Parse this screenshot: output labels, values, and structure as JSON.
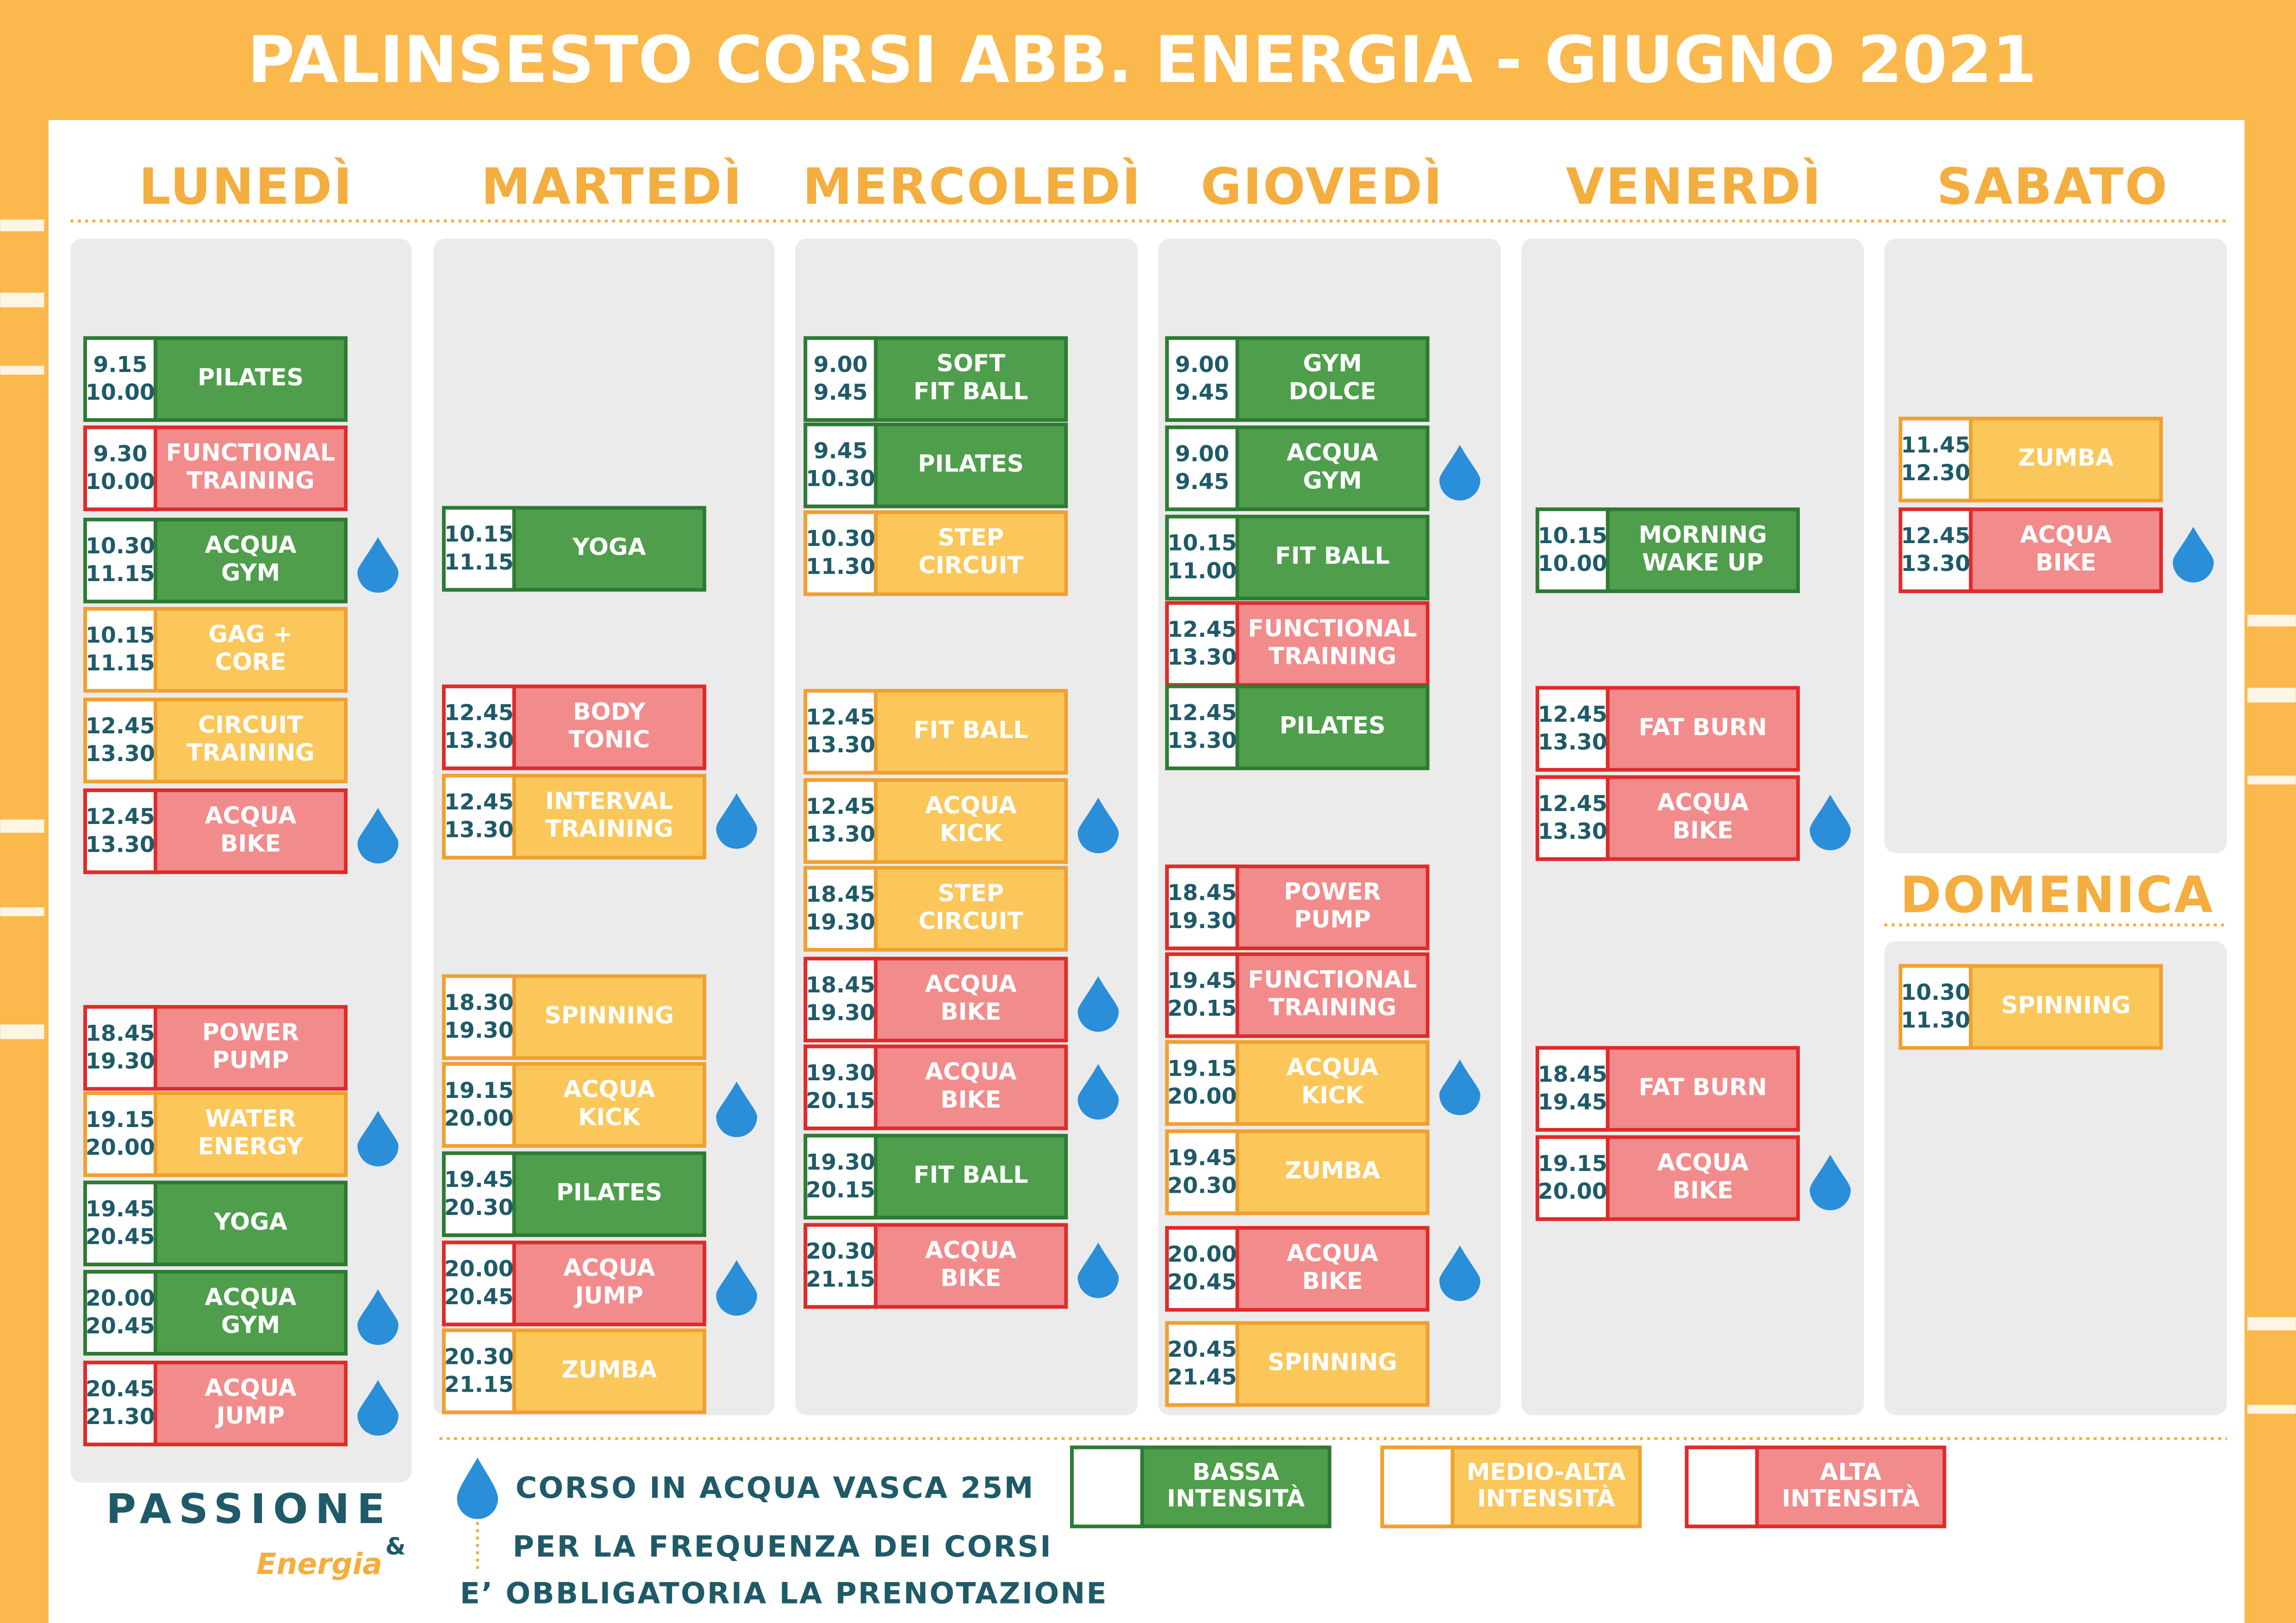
{
  "title": "PALINSESTO CORSI ABB. ENERGIA - GIUGNO 2021",
  "days": [
    {
      "name": "LUNEDÌ",
      "classes": [
        {
          "start": "9.15",
          "end": "10.00",
          "name": [
            "PILATES"
          ],
          "color": "#4e9e4b",
          "water": false
        },
        {
          "start": "9.30",
          "end": "10.00",
          "name": [
            "FUNCTIONAL",
            "TRAINING"
          ],
          "color": "#f28b8b",
          "water": false
        },
        {
          "start": "10.30",
          "end": "11.15",
          "name": [
            "ACQUA",
            "GYM"
          ],
          "color": "#4e9e4b",
          "water": true
        },
        {
          "start": "10.15",
          "end": "11.15",
          "name": [
            "GAG +",
            "CORE"
          ],
          "color": "#fbc75a",
          "water": false
        },
        {
          "start": "12.45",
          "end": "13.30",
          "name": [
            "CIRCUIT",
            "TRAINING"
          ],
          "color": "#fbc75a",
          "water": false
        },
        {
          "start": "12.45",
          "end": "13.30",
          "name": [
            "ACQUA",
            "BIKE"
          ],
          "color": "#f28b8b",
          "water": true
        },
        {
          "start": "18.45",
          "end": "19.30",
          "name": [
            "POWER",
            "PUMP"
          ],
          "color": "#f28b8b",
          "water": false
        },
        {
          "start": "19.15",
          "end": "20.00",
          "name": [
            "WATER",
            "ENERGY"
          ],
          "color": "#fbc75a",
          "water": true
        },
        {
          "start": "19.45",
          "end": "20.45",
          "name": [
            "YOGA"
          ],
          "color": "#4e9e4b",
          "water": false
        },
        {
          "start": "20.00",
          "end": "20.45",
          "name": [
            "ACQUA",
            "GYM"
          ],
          "color": "#4e9e4b",
          "water": true
        },
        {
          "start": "20.45",
          "end": "21.30",
          "name": [
            "ACQUA",
            "JUMP"
          ],
          "color": "#f28b8b",
          "water": true
        }
      ]
    },
    {
      "name": "MARTEDÌ",
      "classes": [
        {
          "start": "10.15",
          "end": "11.15",
          "name": [
            "YOGA"
          ],
          "color": "#4e9e4b",
          "water": false
        },
        {
          "start": "12.45",
          "end": "13.30",
          "name": [
            "BODY",
            "TONIC"
          ],
          "color": "#f28b8b",
          "water": false
        },
        {
          "start": "12.45",
          "end": "13.30",
          "name": [
            "INTERVAL",
            "TRAINING"
          ],
          "color": "#fbc75a",
          "water": true
        },
        {
          "start": "18.30",
          "end": "19.30",
          "name": [
            "SPINNING"
          ],
          "color": "#fbc75a",
          "water": false
        },
        {
          "start": "19.15",
          "end": "20.00",
          "name": [
            "ACQUA",
            "KICK"
          ],
          "color": "#fbc75a",
          "water": true
        },
        {
          "start": "19.45",
          "end": "20.30",
          "name": [
            "PILATES"
          ],
          "color": "#4e9e4b",
          "water": false
        },
        {
          "start": "20.00",
          "end": "20.45",
          "name": [
            "ACQUA",
            "JUMP"
          ],
          "color": "#f28b8b",
          "water": true
        },
        {
          "start": "20.30",
          "end": "21.15",
          "name": [
            "ZUMBA"
          ],
          "color": "#fbc75a",
          "water": false
        }
      ]
    },
    {
      "name": "MERCOLEDÌ",
      "classes": [
        {
          "start": "9.00",
          "end": "9.45",
          "name": [
            "SOFT",
            "FIT BALL"
          ],
          "color": "#4e9e4b",
          "water": false
        },
        {
          "start": "9.45",
          "end": "10.30",
          "name": [
            "PILATES"
          ],
          "color": "#4e9e4b",
          "water": false
        },
        {
          "start": "10.30",
          "end": "11.30",
          "name": [
            "STEP",
            "CIRCUIT"
          ],
          "color": "#fbc75a",
          "water": false
        },
        {
          "start": "12.45",
          "end": "13.30",
          "name": [
            "FIT BALL"
          ],
          "color": "#fbc75a",
          "water": false
        },
        {
          "start": "12.45",
          "end": "13.30",
          "name": [
            "ACQUA",
            "KICK"
          ],
          "color": "#fbc75a",
          "water": true
        },
        {
          "start": "18.45",
          "end": "19.30",
          "name": [
            "STEP",
            "CIRCUIT"
          ],
          "color": "#fbc75a",
          "water": false
        },
        {
          "start": "18.45",
          "end": "19.30",
          "name": [
            "ACQUA",
            "BIKE"
          ],
          "color": "#f28b8b",
          "water": true
        },
        {
          "start": "19.30",
          "end": "20.15",
          "name": [
            "ACQUA",
            "BIKE"
          ],
          "color": "#f28b8b",
          "water": true
        },
        {
          "start": "19.30",
          "end": "20.15",
          "name": [
            "FIT BALL"
          ],
          "color": "#4e9e4b",
          "water": false
        },
        {
          "start": "20.30",
          "end": "21.15",
          "name": [
            "ACQUA",
            "BIKE"
          ],
          "color": "#f28b8b",
          "water": true
        }
      ]
    },
    {
      "name": "GIOVEDÌ",
      "classes": [
        {
          "start": "9.00",
          "end": "9.45",
          "name": [
            "GYM",
            "DOLCE"
          ],
          "color": "#4e9e4b",
          "water": false
        },
        {
          "start": "9.00",
          "end": "9.45",
          "name": [
            "ACQUA",
            "GYM"
          ],
          "color": "#4e9e4b",
          "water": true
        },
        {
          "start": "10.15",
          "end": "11.00",
          "name": [
            "FIT BALL"
          ],
          "color": "#4e9e4b",
          "water": false
        },
        {
          "start": "12.45",
          "end": "13.30",
          "name": [
            "FUNCTIONAL",
            "TRAINING"
          ],
          "color": "#f28b8b",
          "water": false
        },
        {
          "start": "12.45",
          "end": "13.30",
          "name": [
            "PILATES"
          ],
          "color": "#4e9e4b",
          "water": false
        },
        {
          "start": "18.45",
          "end": "19.30",
          "name": [
            "POWER",
            "PUMP"
          ],
          "color": "#f28b8b",
          "water": false
        },
        {
          "start": "19.45",
          "end": "20.15",
          "name": [
            "FUNCTIONAL",
            "TRAINING"
          ],
          "color": "#f28b8b",
          "water": false
        },
        {
          "start": "19.15",
          "end": "20.00",
          "name": [
            "ACQUA",
            "KICK"
          ],
          "color": "#fbc75a",
          "water": true
        },
        {
          "start": "19.45",
          "end": "20.30",
          "name": [
            "ZUMBA"
          ],
          "color": "#fbc75a",
          "water": false
        },
        {
          "start": "20.00",
          "end": "20.45",
          "name": [
            "ACQUA",
            "BIKE"
          ],
          "color": "#f28b8b",
          "water": true
        },
        {
          "start": "20.45",
          "end": "21.45",
          "name": [
            "SPINNING"
          ],
          "color": "#fbc75a",
          "water": false
        }
      ]
    },
    {
      "name": "VENERDÌ",
      "classes": [
        {
          "start": "10.15",
          "end": "10.00",
          "name": [
            "MORNING",
            "WAKE UP"
          ],
          "color": "#4e9e4b",
          "water": false
        },
        {
          "start": "12.45",
          "end": "13.30",
          "name": [
            "FAT BURN"
          ],
          "color": "#f28b8b",
          "water": false
        },
        {
          "start": "12.45",
          "end": "13.30",
          "name": [
            "ACQUA",
            "BIKE"
          ],
          "color": "#f28b8b",
          "water": true
        },
        {
          "start": "18.45",
          "end": "19.45",
          "name": [
            "FAT BURN"
          ],
          "color": "#f28b8b",
          "water": false
        },
        {
          "start": "19.15",
          "end": "20.00",
          "name": [
            "ACQUA",
            "BIKE"
          ],
          "color": "#f28b8b",
          "water": true
        }
      ]
    },
    {
      "name": "SABATO",
      "classes": [
        {
          "start": "11.45",
          "end": "12.30",
          "name": [
            "ZUMBA"
          ],
          "color": "#fbc75a",
          "water": false
        },
        {
          "start": "12.45",
          "end": "13.30",
          "name": [
            "ACQUA",
            "BIKE"
          ],
          "color": "#f28b8b",
          "water": true
        }
      ]
    },
    {
      "name": "DOMENICA",
      "classes": [
        {
          "start": "10.30",
          "end": "11.30",
          "name": [
            "SPINNING"
          ],
          "color": "#fbc75a",
          "water": false
        }
      ]
    }
  ],
  "legend": {
    "water": "CORSO IN ACQUA VASCA 25M",
    "items": [
      {
        "label": [
          "BASSA",
          "INTENSITÀ"
        ],
        "color": "#4e9e4b"
      },
      {
        "label": [
          "MEDIO-ALTA",
          "INTENSITÀ"
        ],
        "color": "#fbc75a"
      },
      {
        "label": [
          "ALTA",
          "INTENSITÀ"
        ],
        "color": "#f28b8b"
      }
    ]
  },
  "notes": [
    "PER LA FREQUENZA DEI CORSI",
    "E’ OBBLIGATORIA LA PRENOTAZIONE"
  ],
  "logo": {
    "name": "PASSIONE",
    "script": "Energia",
    "amp": "&"
  }
}
